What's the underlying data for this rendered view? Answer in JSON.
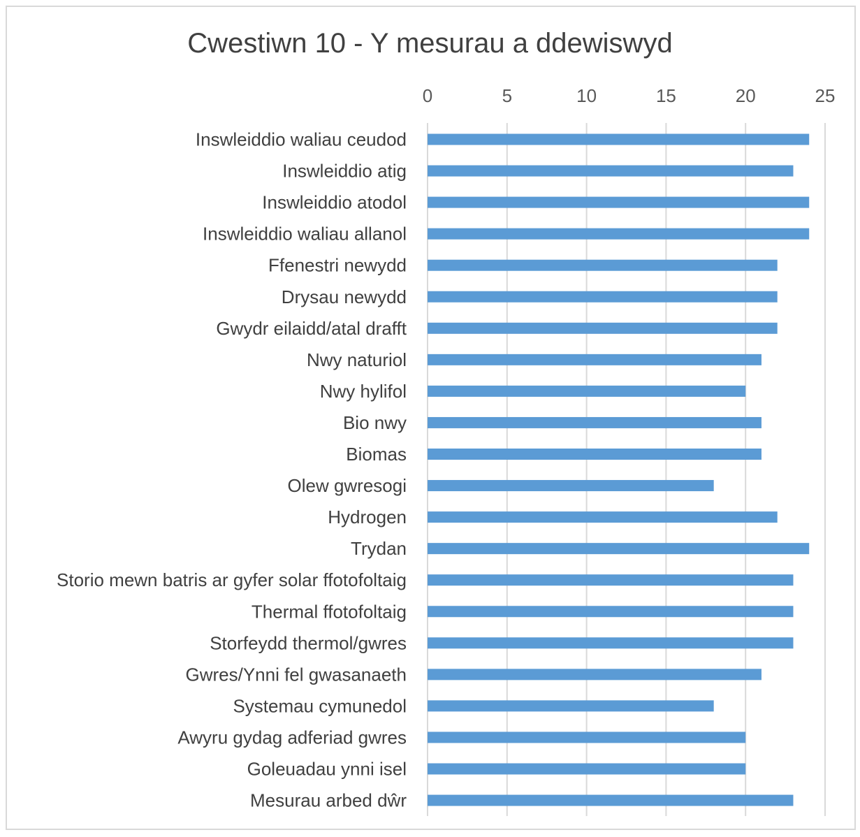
{
  "chart_data": {
    "type": "bar",
    "orientation": "horizontal",
    "title": "Cwestiwn 10 - Y mesurau a ddewiswyd",
    "xlabel": "",
    "ylabel": "",
    "xlim": [
      0,
      25
    ],
    "ticks": [
      "0",
      "5",
      "10",
      "15",
      "20",
      "25"
    ],
    "x_axis_position": "top",
    "grid": true,
    "bar_color": "#5b9bd5",
    "categories": [
      "Inswleiddio waliau ceudod",
      "Inswleiddio atig",
      "Inswleiddio atodol",
      "Inswleiddio waliau allanol",
      "Ffenestri newydd",
      "Drysau newydd",
      "Gwydr eilaidd/atal drafft",
      "Nwy naturiol",
      "Nwy hylifol",
      "Bio nwy",
      "Biomas",
      "Olew gwresogi",
      "Hydrogen",
      "Trydan",
      "Storio mewn batris ar gyfer solar ffotofoltaig",
      "Thermal ffotofoltaig",
      "Storfeydd thermol/gwres",
      "Gwres/Ynni fel gwasanaeth",
      "Systemau cymunedol",
      "Awyru gydag adferiad gwres",
      "Goleuadau ynni isel",
      "Mesurau arbed dŵr"
    ],
    "values": [
      24,
      23,
      24,
      24,
      22,
      22,
      22,
      21,
      20,
      21,
      21,
      18,
      22,
      24,
      23,
      23,
      23,
      21,
      18,
      20,
      20,
      23
    ]
  }
}
